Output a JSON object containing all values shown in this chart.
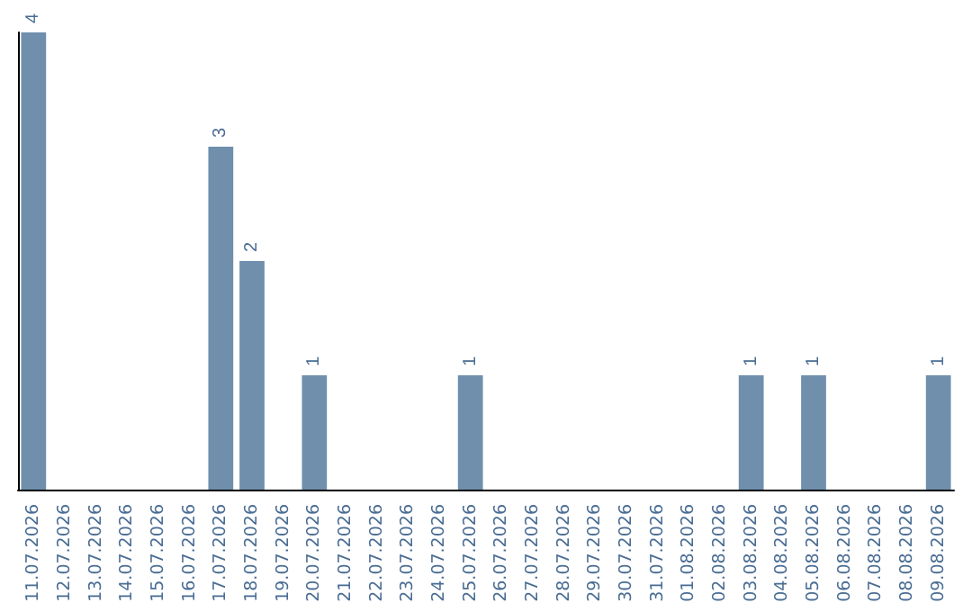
{
  "chart_data": {
    "type": "bar",
    "categories": [
      "11.07.2026",
      "12.07.2026",
      "13.07.2026",
      "14.07.2026",
      "15.07.2026",
      "16.07.2026",
      "17.07.2026",
      "18.07.2026",
      "19.07.2026",
      "20.07.2026",
      "21.07.2026",
      "22.07.2026",
      "23.07.2026",
      "24.07.2026",
      "25.07.2026",
      "26.07.2026",
      "27.07.2026",
      "28.07.2026",
      "29.07.2026",
      "30.07.2026",
      "31.07.2026",
      "01.08.2026",
      "02.08.2026",
      "03.08.2026",
      "04.08.2026",
      "05.08.2026",
      "06.08.2026",
      "07.08.2026",
      "08.08.2026",
      "09.08.2026"
    ],
    "values": [
      4,
      0,
      0,
      0,
      0,
      0,
      3,
      2,
      0,
      1,
      0,
      0,
      0,
      0,
      1,
      0,
      0,
      0,
      0,
      0,
      0,
      0,
      0,
      1,
      0,
      1,
      0,
      0,
      0,
      1
    ],
    "value_labels": [
      "4",
      null,
      null,
      null,
      null,
      null,
      "3",
      "2",
      null,
      "1",
      null,
      null,
      null,
      null,
      "1",
      null,
      null,
      null,
      null,
      null,
      null,
      null,
      null,
      "1",
      null,
      "1",
      null,
      null,
      null,
      "1"
    ],
    "color": "#6f8fad"
  }
}
